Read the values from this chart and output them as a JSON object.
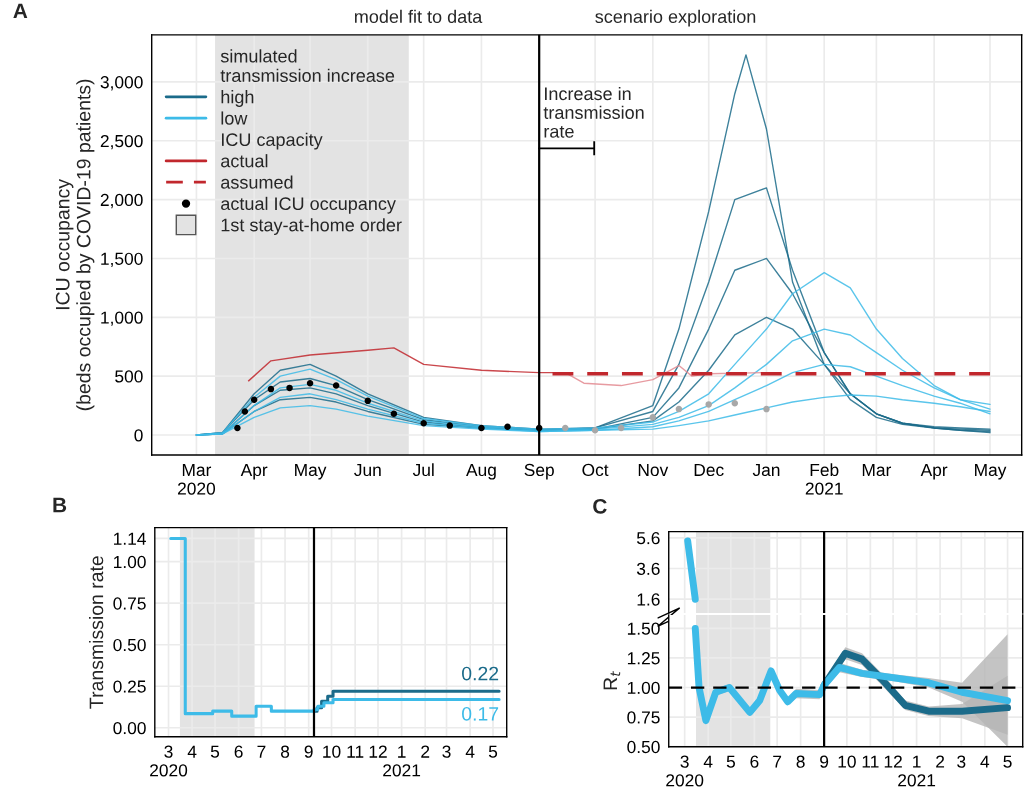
{
  "chart_data": [
    {
      "type": "line",
      "title": "A",
      "ylabel": "ICU occupancy\n(beds occupied by COVID-19 patients)",
      "legend": "top left",
      "legend_title": [
        "simulated\ntransmission increase",
        "ICU capacity"
      ],
      "grid": true,
      "xlim": [
        "2020-02-06",
        "2021-05-18"
      ],
      "ylim": [
        -170,
        3400
      ],
      "xticks": [
        {
          "value": "2020-03-01",
          "label": "Mar\n2020"
        },
        {
          "value": "2020-04-01",
          "label": "Apr"
        },
        {
          "value": "2020-05-01",
          "label": "May"
        },
        {
          "value": "2020-06-01",
          "label": "Jun"
        },
        {
          "value": "2020-07-01",
          "label": "Jul"
        },
        {
          "value": "2020-08-01",
          "label": "Aug"
        },
        {
          "value": "2020-09-01",
          "label": "Sep"
        },
        {
          "value": "2020-10-01",
          "label": "Oct"
        },
        {
          "value": "2020-11-01",
          "label": "Nov"
        },
        {
          "value": "2020-12-01",
          "label": "Dec"
        },
        {
          "value": "2021-01-01",
          "label": "Jan"
        },
        {
          "value": "2021-02-01",
          "label": "Feb\n2021"
        },
        {
          "value": "2021-03-01",
          "label": "Mar"
        },
        {
          "value": "2021-04-01",
          "label": "Apr"
        },
        {
          "value": "2021-05-01",
          "label": "May"
        }
      ],
      "yticks": [
        0,
        500,
        {
          "value": 1000,
          "label": "1,000"
        },
        {
          "value": 1500,
          "label": "1,500"
        },
        {
          "value": 2000,
          "label": "2,000"
        },
        {
          "value": 2500,
          "label": "2,500"
        },
        {
          "value": 3000,
          "label": "3,000"
        }
      ],
      "x": [
        "2020-03-01",
        "2020-03-15",
        "2020-04-01",
        "2020-04-15",
        "2020-05-01",
        "2020-05-15",
        "2020-06-01",
        "2020-07-01",
        "2020-08-01",
        "2020-09-01",
        "2020-10-01",
        "2020-11-01",
        "2020-11-15",
        "2020-12-01",
        "2020-12-15",
        "2021-01-01",
        "2021-01-15",
        "2021-02-01",
        "2021-02-15",
        "2021-03-01",
        "2021-03-15",
        "2021-04-01",
        "2021-04-15",
        "2021-05-01"
      ],
      "series": [
        {
          "name": "high",
          "color": "#1b6b8a",
          "x": [
            "2020-03-01",
            "2020-03-15",
            "2020-04-01",
            "2020-04-15",
            "2020-05-01",
            "2020-05-15",
            "2020-06-01",
            "2020-07-01",
            "2020-08-01",
            "2020-09-01",
            "2020-10-01",
            "2020-11-01",
            "2020-11-15",
            "2020-12-01",
            "2020-12-15",
            "2020-12-21",
            "2021-01-01",
            "2021-01-15",
            "2021-02-01",
            "2021-02-15",
            "2021-03-01",
            "2021-03-15",
            "2021-04-01",
            "2021-04-15",
            "2021-05-01"
          ],
          "values": [
            0,
            20,
            350,
            550,
            600,
            500,
            350,
            150,
            80,
            50,
            60,
            250,
            900,
            1900,
            2900,
            3230,
            2600,
            1300,
            600,
            300,
            150,
            90,
            60,
            40,
            30
          ]
        },
        {
          "color": "#1b6b8a",
          "values": [
            0,
            20,
            300,
            450,
            480,
            420,
            300,
            130,
            70,
            40,
            60,
            200,
            600,
            1300,
            2000,
            2100,
            1400,
            700,
            350,
            180,
            100,
            60,
            40,
            20
          ]
        },
        {
          "color": "#1b6b8a",
          "values": [
            0,
            10,
            250,
            380,
            400,
            350,
            250,
            110,
            60,
            40,
            50,
            150,
            400,
            900,
            1400,
            1500,
            1200,
            700,
            350,
            180,
            100,
            60,
            50,
            40
          ]
        },
        {
          "color": "#1b6b8a",
          "values": [
            0,
            10,
            200,
            300,
            320,
            280,
            200,
            90,
            60,
            40,
            50,
            120,
            280,
            550,
            850,
            1000,
            900,
            600,
            350,
            180,
            100,
            70,
            60,
            50
          ]
        },
        {
          "name": "low",
          "color": "#3dbbe8",
          "values": [
            0,
            20,
            320,
            500,
            560,
            470,
            330,
            140,
            80,
            50,
            60,
            110,
            200,
            350,
            600,
            900,
            1200,
            1380,
            1250,
            900,
            650,
            420,
            300,
            220
          ]
        },
        {
          "color": "#3dbbe8",
          "values": [
            0,
            10,
            250,
            400,
            430,
            380,
            270,
            120,
            70,
            40,
            50,
            90,
            150,
            250,
            400,
            600,
            800,
            900,
            850,
            700,
            550,
            400,
            300,
            260
          ]
        },
        {
          "color": "#3dbbe8",
          "values": [
            0,
            10,
            200,
            320,
            350,
            300,
            220,
            100,
            60,
            30,
            40,
            70,
            120,
            200,
            300,
            420,
            530,
            600,
            580,
            500,
            420,
            330,
            270,
            180
          ]
        },
        {
          "color": "#3dbbe8",
          "values": [
            0,
            10,
            150,
            230,
            250,
            220,
            160,
            80,
            50,
            30,
            40,
            50,
            80,
            120,
            170,
            230,
            280,
            320,
            340,
            330,
            300,
            270,
            240,
            200
          ]
        },
        {
          "name": "actual",
          "color": "#c1272d",
          "x": [
            "2020-03-29",
            "2020-04-10",
            "2020-05-01",
            "2020-06-01",
            "2020-06-15",
            "2020-07-01",
            "2020-08-01",
            "2020-09-01",
            "2020-09-15"
          ],
          "values": [
            460,
            630,
            680,
            720,
            740,
            600,
            550,
            530,
            530
          ]
        },
        {
          "color": "#e38a90",
          "x": [
            "2020-09-15",
            "2020-09-25",
            "2020-10-15",
            "2020-11-01",
            "2020-11-15",
            "2020-11-22",
            "2020-12-01",
            "2021-01-01"
          ],
          "values": [
            530,
            440,
            420,
            470,
            590,
            500,
            520,
            530
          ]
        },
        {
          "name": "assumed",
          "color": "#c1272d",
          "line_style": "dashed",
          "x": [
            "2020-09-01",
            "2021-05-01"
          ],
          "values": [
            520,
            520
          ]
        },
        {
          "name": "actual ICU occupancy",
          "type": "scatter",
          "marker": "circle",
          "color": "#000000",
          "x": [
            "2020-03-23",
            "2020-03-27",
            "2020-04-01",
            "2020-04-10",
            "2020-04-20",
            "2020-05-01",
            "2020-05-15",
            "2020-06-01",
            "2020-06-15",
            "2020-07-01",
            "2020-07-15",
            "2020-08-01",
            "2020-08-15",
            "2020-09-01"
          ],
          "values": [
            60,
            200,
            300,
            390,
            400,
            440,
            420,
            290,
            180,
            100,
            80,
            60,
            70,
            60
          ]
        },
        {
          "type": "scatter",
          "marker": "circle",
          "color": "#a8a8a8",
          "x": [
            "2020-09-15",
            "2020-10-01",
            "2020-10-15",
            "2020-11-01",
            "2020-11-15",
            "2020-12-01",
            "2020-12-15",
            "2021-01-01"
          ],
          "values": [
            60,
            40,
            60,
            150,
            220,
            260,
            270,
            220
          ]
        }
      ],
      "ref_lines": [
        {
          "axis": "x",
          "value": "2020-09-01",
          "color": "#000000"
        }
      ],
      "bands": [
        {
          "axis": "x",
          "from": "2020-03-11",
          "to": "2020-06-23",
          "label": "1st stay-at-home order",
          "color": "#e3e3e3"
        }
      ],
      "annotations": [
        "model fit to data",
        "scenario exploration",
        "Increase in\ntransmission\nrate"
      ]
    },
    {
      "type": "step",
      "title": "B",
      "ylabel": "Transmission rate",
      "grid": true,
      "xlim": [
        "2020-02-12",
        "2021-05-19"
      ],
      "ylim": [
        -0.054,
        1.205
      ],
      "xticks": [
        {
          "value": "2020-03-01",
          "label": "3\n2020"
        },
        {
          "value": "2020-04-01",
          "label": "4"
        },
        {
          "value": "2020-05-01",
          "label": "5"
        },
        {
          "value": "2020-06-01",
          "label": "6"
        },
        {
          "value": "2020-07-01",
          "label": "7"
        },
        {
          "value": "2020-08-01",
          "label": "8"
        },
        {
          "value": "2020-09-01",
          "label": "9"
        },
        {
          "value": "2020-10-01",
          "label": "10"
        },
        {
          "value": "2020-11-01",
          "label": "11"
        },
        {
          "value": "2020-12-01",
          "label": "12"
        },
        {
          "value": "2021-01-01",
          "label": "1\n2021"
        },
        {
          "value": "2021-02-01",
          "label": "2"
        },
        {
          "value": "2021-03-01",
          "label": "3"
        },
        {
          "value": "2021-04-01",
          "label": "4"
        },
        {
          "value": "2021-05-01",
          "label": "5"
        }
      ],
      "yticks": [
        {
          "value": 0,
          "label": "0.00"
        },
        0.25,
        {
          "value": 0.5,
          "label": "0.50"
        },
        0.75,
        {
          "value": 1,
          "label": "1.00"
        },
        1.14
      ],
      "series": [
        {
          "color": "#1b6b8a",
          "x": [
            "2020-09-08",
            "2020-09-12",
            "2020-09-18",
            "2020-09-26",
            "2020-10-03",
            "2021-05-09"
          ],
          "values": [
            0.1,
            0.12,
            0.16,
            0.19,
            0.22,
            0.22
          ],
          "value_labels": [
            null,
            null,
            null,
            null,
            null,
            "0.22"
          ]
        },
        {
          "color": "#3dbbe8",
          "x": [
            "2020-03-04",
            "2020-03-23",
            "2020-04-28",
            "2020-05-23",
            "2020-06-24",
            "2020-07-14",
            "2020-09-08",
            "2020-09-13",
            "2020-09-21",
            "2020-10-03",
            "2021-05-09"
          ],
          "values": [
            1.14,
            0.085,
            0.1,
            0.07,
            0.13,
            0.1,
            0.11,
            0.13,
            0.15,
            0.17,
            0.17
          ],
          "value_labels": [
            null,
            null,
            null,
            null,
            null,
            null,
            null,
            null,
            null,
            null,
            "0.17"
          ]
        }
      ],
      "ref_lines": [
        {
          "axis": "x",
          "value": "2020-09-08",
          "color": "#000000"
        }
      ],
      "bands": [
        {
          "axis": "x",
          "from": "2020-03-16",
          "to": "2020-06-22",
          "color": "#e3e3e3"
        }
      ]
    },
    {
      "type": "line",
      "title": "C",
      "grid": true,
      "tick_labels": "y",
      "xlim": [
        "2020-02-09",
        "2021-05-21"
      ],
      "ylim": [
        0.7,
        6.0
      ],
      "xticks": [
        {
          "value": "2020-03-01",
          "label": null
        },
        {
          "value": "2020-04-01",
          "label": null
        },
        {
          "value": "2020-05-01",
          "label": null
        },
        {
          "value": "2020-06-01",
          "label": null
        },
        {
          "value": "2020-07-01",
          "label": null
        },
        {
          "value": "2020-08-01",
          "label": null
        },
        {
          "value": "2020-09-01",
          "label": null
        },
        {
          "value": "2020-10-01",
          "label": null
        },
        {
          "value": "2020-11-01",
          "label": null
        },
        {
          "value": "2020-12-01",
          "label": null
        },
        {
          "value": "2021-01-01",
          "label": null
        },
        {
          "value": "2021-02-01",
          "label": null
        },
        {
          "value": "2021-03-01",
          "label": null
        },
        {
          "value": "2021-04-01",
          "label": null
        },
        {
          "value": "2021-05-01",
          "label": null
        }
      ],
      "yticks": [
        1.6,
        3.6,
        5.6
      ],
      "series": [
        {
          "color": "#3dbbe8",
          "x": [
            "2020-03-05",
            "2020-03-15"
          ],
          "values": [
            5.4,
            1.6
          ]
        }
      ],
      "ref_lines": [
        {
          "axis": "x",
          "value": "2020-09-01",
          "color": "#000000"
        }
      ],
      "bands": [
        {
          "axis": "x",
          "from": "2020-03-16",
          "to": "2020-06-22",
          "color": "#e3e3e3"
        }
      ]
    },
    {
      "type": "line",
      "ylabel": "R$_{t}$",
      "grid": true,
      "xlim": [
        "2020-02-09",
        "2021-05-21"
      ],
      "ylim": [
        0.5,
        1.613
      ],
      "xticks": [
        {
          "value": "2020-03-01",
          "label": "3\n2020"
        },
        {
          "value": "2020-04-01",
          "label": "4"
        },
        {
          "value": "2020-05-01",
          "label": "5"
        },
        {
          "value": "2020-06-01",
          "label": "6"
        },
        {
          "value": "2020-07-01",
          "label": "7"
        },
        {
          "value": "2020-08-01",
          "label": "8"
        },
        {
          "value": "2020-09-01",
          "label": "9"
        },
        {
          "value": "2020-10-01",
          "label": "10"
        },
        {
          "value": "2020-11-01",
          "label": "11"
        },
        {
          "value": "2020-12-01",
          "label": "12"
        },
        {
          "value": "2021-01-01",
          "label": "1\n2021"
        },
        {
          "value": "2021-02-01",
          "label": "2"
        },
        {
          "value": "2021-03-01",
          "label": "3"
        },
        {
          "value": "2021-04-01",
          "label": "4"
        },
        {
          "value": "2021-05-01",
          "label": "5"
        }
      ],
      "yticks": [
        {
          "value": 0.5,
          "label": "0.50"
        },
        0.75,
        {
          "value": 1,
          "label": "1.00"
        },
        1.25,
        {
          "value": 1.5,
          "label": "1.50"
        }
      ],
      "series": [
        {
          "color": "#1b6b8a",
          "x": [
            "2020-09-01",
            "2020-09-29",
            "2020-10-21",
            "2020-11-16",
            "2020-12-17",
            "2021-01-17",
            "2021-03-02",
            "2021-05-01"
          ],
          "values": [
            1.02,
            1.29,
            1.24,
            1.07,
            0.85,
            0.8,
            0.8,
            0.83
          ],
          "lower": [
            0.98,
            1.24,
            1.19,
            1.02,
            0.81,
            0.76,
            0.74,
            0.6
          ],
          "upper": [
            1.06,
            1.34,
            1.29,
            1.12,
            0.89,
            0.84,
            0.86,
            1.1
          ]
        },
        {
          "color": "#3dbbe8",
          "x": [
            "2020-03-15",
            "2020-03-20",
            "2020-03-29",
            "2020-04-11",
            "2020-04-29",
            "2020-05-26",
            "2020-06-08",
            "2020-06-23",
            "2020-07-04",
            "2020-07-15",
            "2020-07-26",
            "2020-08-26",
            "2020-09-01",
            "2020-09-21",
            "2020-10-21",
            "2020-12-04",
            "2021-01-17",
            "2021-03-02",
            "2021-05-01"
          ],
          "values": [
            1.5,
            1.0,
            0.72,
            0.96,
            1.0,
            0.79,
            0.89,
            1.14,
            0.98,
            0.88,
            0.95,
            0.94,
            1.02,
            1.17,
            1.12,
            1.08,
            1.04,
            0.96,
            0.89
          ],
          "lower": [
            1.47,
            0.97,
            0.69,
            0.93,
            0.97,
            0.76,
            0.86,
            1.11,
            0.95,
            0.85,
            0.91,
            0.9,
            0.98,
            1.13,
            1.09,
            1.05,
            1.0,
            0.88,
            0.5
          ],
          "upper": [
            1.53,
            1.03,
            0.75,
            0.99,
            1.03,
            0.82,
            0.92,
            1.17,
            1.01,
            0.91,
            0.99,
            0.98,
            1.06,
            1.21,
            1.15,
            1.11,
            1.08,
            1.04,
            1.45
          ]
        }
      ],
      "ref_lines": [
        {
          "axis": "x",
          "value": "2020-09-01",
          "color": "#000000"
        },
        {
          "axis": "y",
          "value": 1,
          "color": "#000000",
          "line_style": "dashed"
        }
      ],
      "bands": [
        {
          "axis": "x",
          "from": "2020-03-16",
          "to": "2020-06-22",
          "color": "#e3e3e3"
        }
      ]
    }
  ]
}
